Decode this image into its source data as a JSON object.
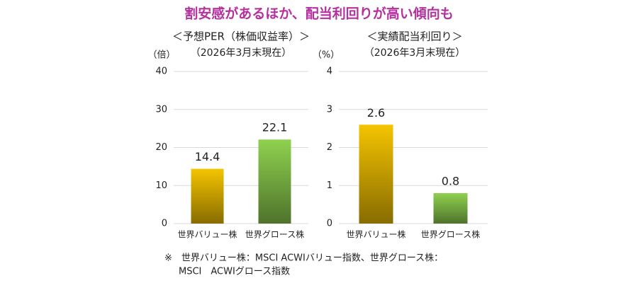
{
  "title": "割安感があるほか、配当利回りが高い傾向も",
  "note": [
    "※　世界バリュー株：MSCI ACWIバリュー指数、世界グロース株：",
    "MSCI　ACWIグロース指数"
  ],
  "chart_data": [
    {
      "type": "bar",
      "title": "＜予想PER（株価収益率）＞",
      "subtitle": "（2026年3月末現在）",
      "y_label": "（倍）",
      "categories": [
        "世界バリュー株",
        "世界グロース株"
      ],
      "values": [
        14.4,
        22.1
      ],
      "colors": [
        "#f5c400",
        "#8fd14f"
      ],
      "ylim": [
        0,
        40
      ],
      "yticks": [
        0,
        10,
        20,
        30,
        40
      ],
      "grid": true
    },
    {
      "type": "bar",
      "title": "＜実績配当利回り＞",
      "subtitle": "（2026年3月末現在）",
      "y_label": "（%）",
      "categories": [
        "世界バリュー株",
        "世界グロース株"
      ],
      "values": [
        2.6,
        0.8
      ],
      "colors": [
        "#f5c400",
        "#8fd14f"
      ],
      "ylim": [
        0,
        4
      ],
      "yticks": [
        0,
        1,
        2,
        3,
        4
      ],
      "grid": true
    }
  ]
}
